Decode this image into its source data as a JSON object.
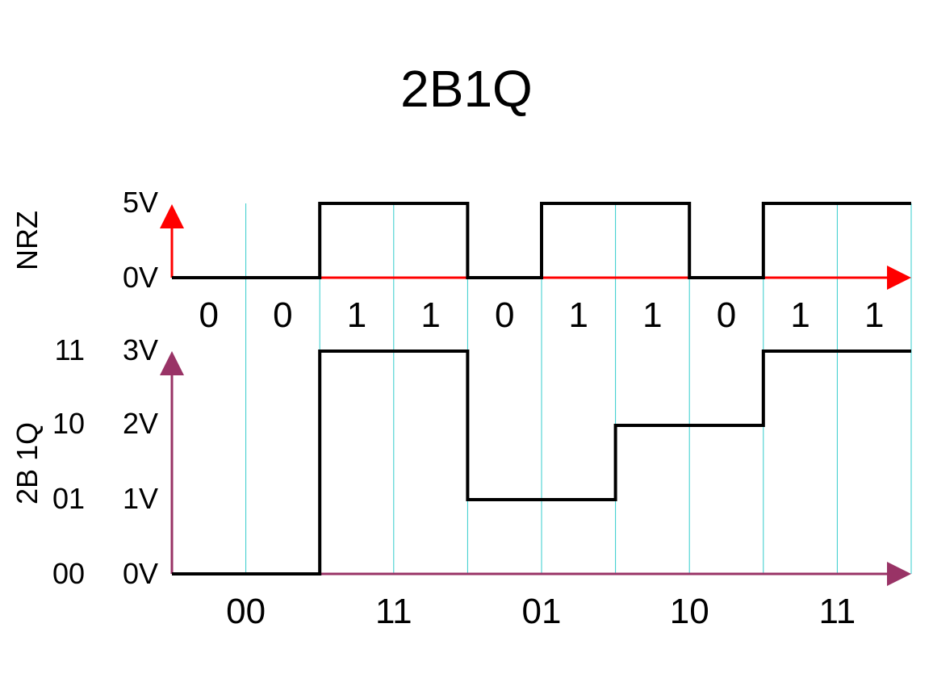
{
  "title": "2B1Q",
  "nrz": {
    "row_label": "NRZ",
    "levels": [
      "5V",
      "0V"
    ],
    "bits": [
      "0",
      "0",
      "1",
      "1",
      "0",
      "1",
      "1",
      "0",
      "1",
      "1"
    ],
    "axis_color": "#ff0000"
  },
  "twob1q": {
    "row_label": "2B 1Q",
    "voltage_labels": [
      "3V",
      "2V",
      "1V",
      "0V"
    ],
    "code_labels": [
      "11",
      "10",
      "01",
      "00"
    ],
    "symbols": [
      "00",
      "11",
      "01",
      "10",
      "11"
    ],
    "levels": [
      0,
      3,
      1,
      2,
      3
    ],
    "axis_color": "#993366"
  },
  "grid_color": "#33cccc",
  "signal_color": "#000000"
}
